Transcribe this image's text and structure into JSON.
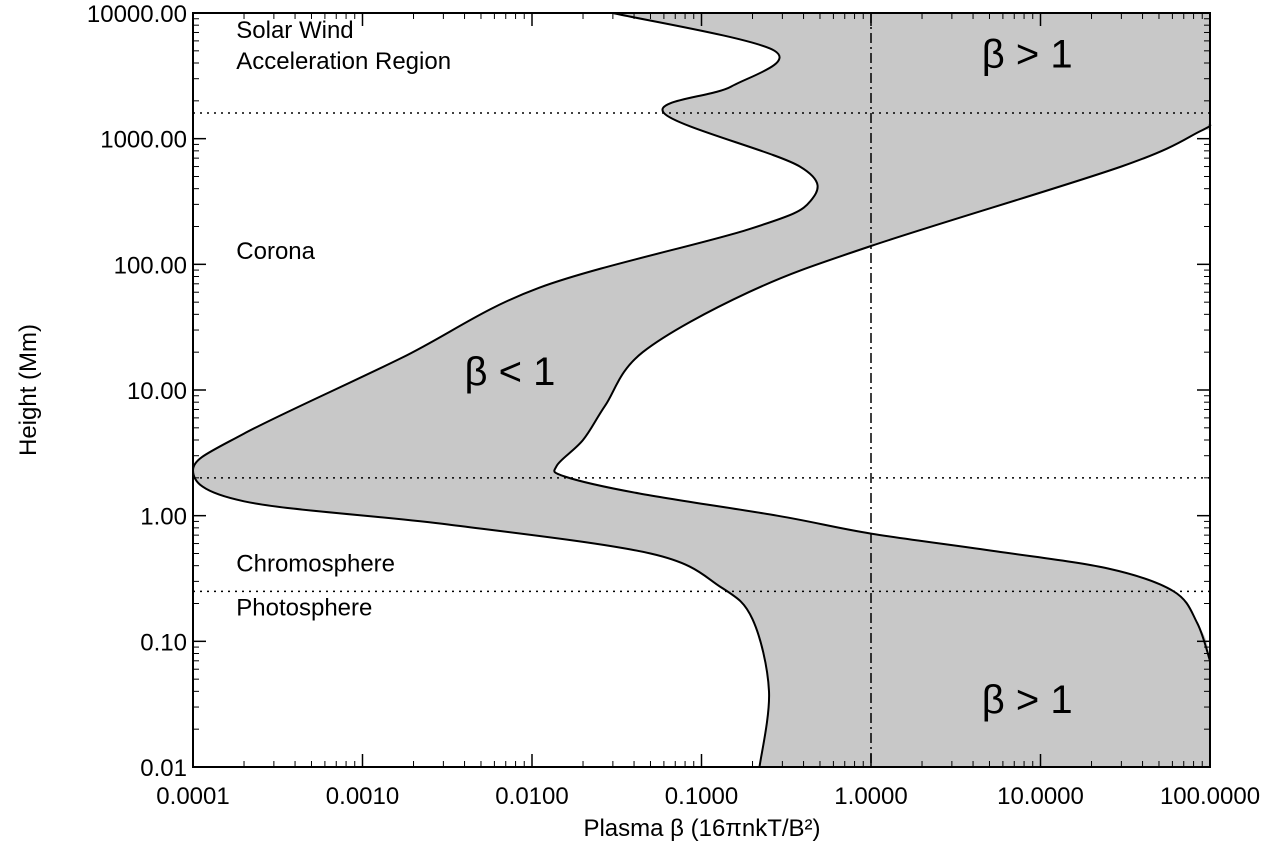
{
  "chart_data": {
    "type": "area",
    "xlabel": "Plasma β (16πnkT/B²)",
    "ylabel": "Height (Mm)",
    "xscale": "log",
    "yscale": "log",
    "xlim": [
      0.0001,
      100
    ],
    "ylim": [
      0.01,
      10000
    ],
    "x_ticks": [
      0.0001,
      0.001,
      0.01,
      0.1,
      1,
      10,
      100
    ],
    "x_tick_labels": [
      "0.0001",
      "0.0010",
      "0.0100",
      "0.1000",
      "1.0000",
      "10.0000",
      "100.0000"
    ],
    "y_ticks": [
      0.01,
      0.1,
      1,
      10,
      100,
      1000,
      10000
    ],
    "y_tick_labels": [
      "0.01",
      "0.10",
      "1.00",
      "10.00",
      "100.00",
      "1000.00",
      "10000.00"
    ],
    "grid": false,
    "fill_color": "#c8c8c8",
    "boundary_low_beta": [
      [
        0.00016,
        0.01
      ],
      [
        0.00011,
        0.014
      ],
      [
        0.00016,
        0.03
      ],
      [
        0.00036,
        0.06
      ],
      [
        0.00078,
        0.12
      ],
      [
        0.0027,
        0.25
      ],
      [
        0.0094,
        0.52
      ],
      [
        0.032,
        0.9
      ],
      [
        0.1,
        1.4
      ],
      [
        0.18,
        2.1
      ]
    ],
    "boundary_high_beta": [
      [
        0.2,
        2.1
      ],
      [
        0.35,
        2.6
      ],
      [
        0.75,
        3.8
      ],
      [
        1.0,
        10
      ],
      [
        1.28,
        30
      ],
      [
        2.6,
        65
      ],
      [
        8.3,
        130
      ],
      [
        100,
        1000
      ],
      [
        100,
        1300
      ]
    ],
    "band_left_boundary": [
      [
        0.03,
        10000
      ],
      [
        0.27,
        5000
      ],
      [
        0.15,
        2600
      ],
      [
        0.06,
        1600
      ],
      [
        0.38,
        600
      ],
      [
        0.44,
        320
      ],
      [
        0.19,
        190
      ],
      [
        0.011,
        65
      ],
      [
        0.0017,
        18
      ],
      [
        0.0002,
        4.5
      ],
      [
        0.0001,
        2.3
      ],
      [
        0.0002,
        1.3
      ],
      [
        0.0032,
        0.85
      ],
      [
        0.05,
        0.5
      ],
      [
        0.13,
        0.27
      ],
      [
        0.2,
        0.15
      ],
      [
        0.25,
        0.04
      ],
      [
        0.22,
        0.01
      ]
    ],
    "band_right_boundary": [
      [
        100,
        10000
      ],
      [
        100,
        1300
      ],
      [
        88,
        1150
      ],
      [
        30,
        600
      ],
      [
        1.0,
        140
      ],
      [
        0.19,
        60
      ],
      [
        0.045,
        20
      ],
      [
        0.027,
        7.5
      ],
      [
        0.02,
        4.0
      ],
      [
        0.014,
        2.5
      ],
      [
        0.0156,
        2.05
      ],
      [
        0.043,
        1.5
      ],
      [
        0.28,
        1.0
      ],
      [
        1.0,
        0.72
      ],
      [
        5.5,
        0.52
      ],
      [
        25,
        0.38
      ],
      [
        61,
        0.25
      ],
      [
        84,
        0.14
      ],
      [
        100,
        0.07
      ],
      [
        100,
        0.01
      ]
    ],
    "reference_lines": [
      {
        "orientation": "vertical",
        "x": 1.0,
        "style": "dash-dot"
      },
      {
        "orientation": "horizontal",
        "y": 1600,
        "style": "dotted"
      },
      {
        "orientation": "horizontal",
        "y": 2.0,
        "style": "dotted"
      },
      {
        "orientation": "horizontal",
        "y": 0.25,
        "style": "dotted"
      }
    ],
    "annotations": [
      {
        "text": "Solar Wind",
        "x": 0.00018,
        "y": 6300,
        "kind": "region"
      },
      {
        "text": "Acceleration Region",
        "x": 0.00018,
        "y": 3600,
        "kind": "region"
      },
      {
        "text": "Corona",
        "x": 0.00018,
        "y": 110,
        "kind": "region"
      },
      {
        "text": "Chromosphere",
        "x": 0.00018,
        "y": 0.36,
        "kind": "region"
      },
      {
        "text": "Photosphere",
        "x": 0.00018,
        "y": 0.16,
        "kind": "region"
      },
      {
        "text": "β > 1",
        "x": 4.5,
        "y": 3700,
        "kind": "beta"
      },
      {
        "text": "β < 1",
        "x": 0.004,
        "y": 11,
        "kind": "beta"
      },
      {
        "text": "β > 1",
        "x": 4.5,
        "y": 0.027,
        "kind": "beta"
      }
    ]
  }
}
